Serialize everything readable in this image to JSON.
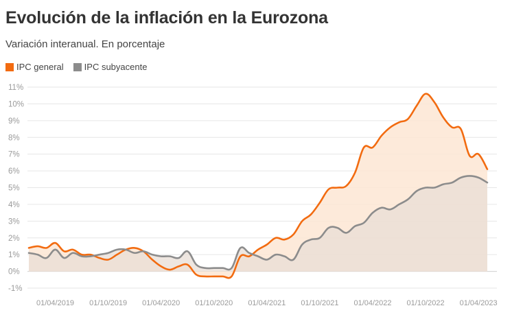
{
  "chart_data": {
    "type": "area",
    "title": "Evolución de la inflación en la Eurozona",
    "subtitle": "Variación interanual. En porcentaje",
    "xlabel": "",
    "ylabel": "",
    "ylim": [
      -1,
      11
    ],
    "yticks": [
      -1,
      0,
      1,
      2,
      3,
      4,
      5,
      6,
      7,
      8,
      9,
      10,
      11
    ],
    "ytick_labels": [
      "-1%",
      "0%",
      "1%",
      "2%",
      "3%",
      "4%",
      "5%",
      "6%",
      "7%",
      "8%",
      "9%",
      "10%",
      "11%"
    ],
    "xtick_labels": [
      "01/04/2019",
      "01/10/2019",
      "01/04/2020",
      "01/10/2020",
      "01/04/2021",
      "01/10/2021",
      "01/04/2022",
      "01/10/2022",
      "01/04/2023"
    ],
    "grid": true,
    "legend_position": "top-left",
    "x": [
      "2019-01",
      "2019-02",
      "2019-03",
      "2019-04",
      "2019-05",
      "2019-06",
      "2019-07",
      "2019-08",
      "2019-09",
      "2019-10",
      "2019-11",
      "2019-12",
      "2020-01",
      "2020-02",
      "2020-03",
      "2020-04",
      "2020-05",
      "2020-06",
      "2020-07",
      "2020-08",
      "2020-09",
      "2020-10",
      "2020-11",
      "2020-12",
      "2021-01",
      "2021-02",
      "2021-03",
      "2021-04",
      "2021-05",
      "2021-06",
      "2021-07",
      "2021-08",
      "2021-09",
      "2021-10",
      "2021-11",
      "2021-12",
      "2022-01",
      "2022-02",
      "2022-03",
      "2022-04",
      "2022-05",
      "2022-06",
      "2022-07",
      "2022-08",
      "2022-09",
      "2022-10",
      "2022-11",
      "2022-12",
      "2023-01",
      "2023-02",
      "2023-03",
      "2023-04",
      "2023-05"
    ],
    "series": [
      {
        "name": "IPC general",
        "color": "#f26b10",
        "values": [
          1.4,
          1.5,
          1.4,
          1.7,
          1.2,
          1.3,
          1.0,
          1.0,
          0.8,
          0.7,
          1.0,
          1.3,
          1.4,
          1.2,
          0.7,
          0.3,
          0.1,
          0.3,
          0.4,
          -0.2,
          -0.3,
          -0.3,
          -0.3,
          -0.3,
          0.9,
          0.9,
          1.3,
          1.6,
          2.0,
          1.9,
          2.2,
          3.0,
          3.4,
          4.1,
          4.9,
          5.0,
          5.1,
          5.9,
          7.4,
          7.4,
          8.1,
          8.6,
          8.9,
          9.1,
          9.9,
          10.6,
          10.1,
          9.2,
          8.6,
          8.5,
          6.9,
          7.0,
          6.1
        ]
      },
      {
        "name": "IPC subyacente",
        "color": "#8c8c8c",
        "values": [
          1.1,
          1.0,
          0.8,
          1.3,
          0.8,
          1.1,
          0.9,
          0.9,
          1.0,
          1.1,
          1.3,
          1.3,
          1.1,
          1.2,
          1.0,
          0.9,
          0.9,
          0.8,
          1.2,
          0.4,
          0.2,
          0.2,
          0.2,
          0.2,
          1.4,
          1.1,
          0.9,
          0.7,
          1.0,
          0.9,
          0.7,
          1.6,
          1.9,
          2.0,
          2.6,
          2.6,
          2.3,
          2.7,
          2.9,
          3.5,
          3.8,
          3.7,
          4.0,
          4.3,
          4.8,
          5.0,
          5.0,
          5.2,
          5.3,
          5.6,
          5.7,
          5.6,
          5.3
        ]
      }
    ]
  }
}
